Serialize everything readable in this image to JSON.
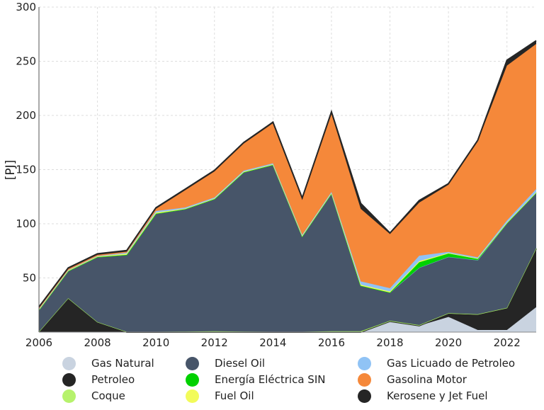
{
  "chart_data": {
    "type": "area",
    "stacked": true,
    "title": "",
    "xlabel": "",
    "ylabel": "[PJ]",
    "xlim": [
      2006,
      2023
    ],
    "ylim": [
      0,
      300
    ],
    "x": [
      2006,
      2007,
      2008,
      2009,
      2010,
      2011,
      2012,
      2013,
      2014,
      2015,
      2016,
      2017,
      2018,
      2019,
      2020,
      2021,
      2022,
      2023
    ],
    "x_ticks": [
      "2006",
      "2008",
      "2010",
      "2012",
      "2014",
      "2016",
      "2018",
      "2020",
      "2022"
    ],
    "y_ticks": [
      "50",
      "100",
      "150",
      "200",
      "250",
      "300"
    ],
    "grid": true,
    "legend_position": "bottom",
    "series": [
      {
        "name": "Gas Natural",
        "color": "#c9d3e0",
        "values": [
          0,
          0,
          0,
          0,
          0,
          0,
          0,
          0,
          0,
          0,
          0,
          0,
          10,
          6,
          14,
          2,
          2,
          23
        ]
      },
      {
        "name": "Petroleo",
        "color": "#252525",
        "values": [
          0,
          31,
          9,
          0,
          0,
          0,
          0,
          0,
          0,
          0,
          0,
          0,
          0,
          0,
          3,
          14,
          20,
          54
        ]
      },
      {
        "name": "Coque",
        "color": "#b6f26c",
        "values": [
          0.3,
          0.3,
          0.3,
          0.3,
          0.3,
          0.5,
          0.8,
          0.5,
          0.3,
          0.3,
          0.8,
          0.8,
          0.5,
          0.5,
          0.5,
          0.5,
          0.5,
          0.5
        ]
      },
      {
        "name": "Diesel Oil",
        "color": "#475569",
        "values": [
          20,
          25,
          60,
          71,
          109,
          113,
          122,
          147,
          154,
          88,
          127,
          42,
          26,
          53,
          52,
          50,
          78,
          51
        ]
      },
      {
        "name": "Energía Eléctrica SIN",
        "color": "#00d100",
        "values": [
          0,
          0,
          0,
          0,
          0,
          0,
          0,
          0,
          0,
          0,
          0,
          0,
          0,
          5,
          3,
          1,
          0,
          0
        ]
      },
      {
        "name": "Fuel Oil",
        "color": "#f2fb5a",
        "values": [
          0.5,
          0.5,
          0.5,
          1,
          1,
          0.5,
          0.5,
          0.5,
          0.5,
          0.5,
          0.5,
          1,
          1,
          1,
          0.5,
          0.5,
          0.5,
          0.5
        ]
      },
      {
        "name": "Gas Licuado de Petroleo",
        "color": "#90c3f5",
        "values": [
          0.5,
          0.5,
          0.5,
          1,
          1.5,
          1,
          1,
          1,
          1,
          1,
          1,
          3,
          3,
          5,
          1,
          1,
          2,
          3
        ]
      },
      {
        "name": "Gasolina Motor",
        "color": "#f5883a",
        "values": [
          1,
          1,
          1,
          1,
          2,
          16,
          24,
          25,
          37,
          33,
          72,
          67,
          50,
          49,
          62,
          107,
          143,
          134
        ]
      },
      {
        "name": "Kerosene y Jet Fuel",
        "color": "#252525",
        "values": [
          1,
          1,
          1,
          1,
          1,
          1,
          1,
          1,
          1,
          1,
          2,
          5,
          1,
          2,
          1,
          1,
          5,
          3
        ]
      }
    ]
  }
}
